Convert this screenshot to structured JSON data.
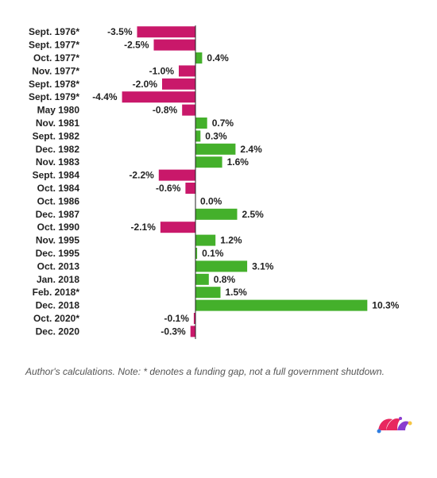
{
  "chart_data": {
    "type": "bar",
    "orientation": "horizontal",
    "categories": [
      "Sept. 1976*",
      "Sept. 1977*",
      "Oct. 1977*",
      "Nov. 1977*",
      "Sept. 1978*",
      "Sept. 1979*",
      "May 1980",
      "Nov. 1981",
      "Sept. 1982",
      "Dec. 1982",
      "Nov. 1983",
      "Sept. 1984",
      "Oct. 1984",
      "Oct. 1986",
      "Dec. 1987",
      "Oct. 1990",
      "Nov. 1995",
      "Dec. 1995",
      "Oct. 2013",
      "Jan. 2018",
      "Feb. 2018*",
      "Dec. 2018",
      "Oct. 2020*",
      "Dec. 2020"
    ],
    "values": [
      -3.5,
      -2.5,
      0.4,
      -1.0,
      -2.0,
      -4.4,
      -0.8,
      0.7,
      0.3,
      2.4,
      1.6,
      -2.2,
      -0.6,
      0.0,
      2.5,
      -2.1,
      1.2,
      0.1,
      3.1,
      0.8,
      1.5,
      10.3,
      -0.1,
      -0.3
    ],
    "value_labels": [
      "-3.5%",
      "-2.5%",
      "0.4%",
      "-1.0%",
      "-2.0%",
      "-4.4%",
      "-0.8%",
      "0.7%",
      "0.3%",
      "2.4%",
      "1.6%",
      "-2.2%",
      "-0.6%",
      "0.0%",
      "2.5%",
      "-2.1%",
      "1.2%",
      "0.1%",
      "3.1%",
      "0.8%",
      "1.5%",
      "10.3%",
      "-0.1%",
      "-0.3%"
    ],
    "title": "",
    "xlabel": "",
    "ylabel": "",
    "grid": false,
    "legend": "none",
    "colors": {
      "positive": "#44b02b",
      "negative": "#c9186a",
      "axis": "#222222"
    }
  },
  "note": "Author's calculations. Note: * denotes a funding gap, not a full government shutdown.",
  "logo": {
    "icon": "jester-hat-icon",
    "colors": [
      "#e8285f",
      "#8a3ccf",
      "#2f7de1",
      "#f5c542"
    ]
  }
}
